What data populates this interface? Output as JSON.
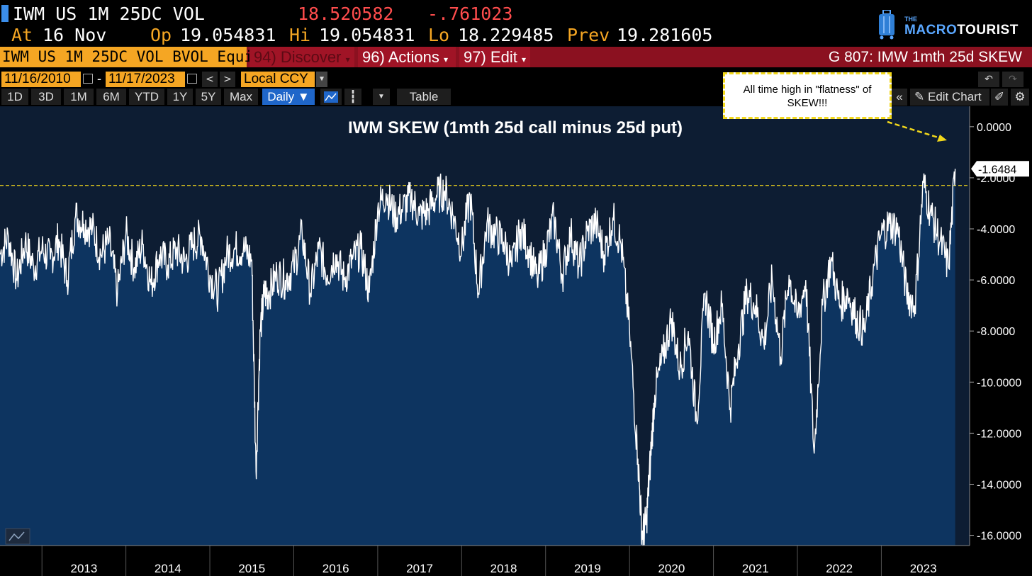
{
  "header": {
    "ticker": "IWM US 1M 25DC VOL",
    "last": "18.520582",
    "change": "-.761023",
    "at_label": "At",
    "at_value": "16 Nov",
    "op_label": "Op",
    "op_value": "19.054831",
    "hi_label": "Hi",
    "hi_value": "19.054831",
    "lo_label": "Lo",
    "lo_value": "18.229485",
    "prev_label": "Prev",
    "prev_value": "19.281605",
    "logo_the": "THE",
    "logo_macro": "MACRO",
    "logo_tourist": "TOURIST"
  },
  "menubar": {
    "security": "IWM US 1M 25DC VOL BVOL Equi",
    "discover": "94) Discover",
    "actions": "96) Actions",
    "edit": "97) Edit",
    "graph_title": "G 807: IMW 1mth 25d SKEW"
  },
  "date_range": {
    "start": "11/16/2010",
    "separator": "-",
    "end": "11/17/2023",
    "currency": "Local CCY"
  },
  "toolbar": {
    "periods": [
      "1D",
      "3D",
      "1M",
      "6M",
      "YTD",
      "1Y",
      "5Y",
      "Max"
    ],
    "frequency": "Daily ▼",
    "table": "Table",
    "edit_chart": "Edit Chart"
  },
  "annotation": {
    "text": "All time high in \"flatness\" of SKEW!!!"
  },
  "chart_data": {
    "type": "area",
    "title": "IWM SKEW (1mth 25d call minus 25d put)",
    "x_ticks": [
      "2013",
      "2014",
      "2015",
      "2016",
      "2017",
      "2018",
      "2019",
      "2020",
      "2021",
      "2022",
      "2023"
    ],
    "y_ticks": [
      "0.0000",
      "-2.0000",
      "-4.0000",
      "-6.0000",
      "-8.0000",
      "-10.0000",
      "-12.0000",
      "-14.0000",
      "-16.0000"
    ],
    "ylim": [
      -16.4,
      0.8
    ],
    "last_value_label": "-1.6484",
    "reference_line": -2.3,
    "series": [
      {
        "x": [
          2012.5,
          2012.6,
          2012.7,
          2012.8,
          2012.9,
          2013.0,
          2013.1,
          2013.2,
          2013.3,
          2013.4,
          2013.5,
          2013.6,
          2013.7,
          2013.8,
          2013.9,
          2014.0,
          2014.1,
          2014.2,
          2014.3,
          2014.4,
          2014.5,
          2014.6,
          2014.7,
          2014.8,
          2014.9,
          2015.0,
          2015.1,
          2015.2,
          2015.3,
          2015.4,
          2015.5,
          2015.55,
          2015.6,
          2015.65,
          2015.7,
          2015.8,
          2015.9,
          2016.0,
          2016.1,
          2016.2,
          2016.3,
          2016.4,
          2016.5,
          2016.6,
          2016.7,
          2016.8,
          2016.9,
          2017.0,
          2017.1,
          2017.2,
          2017.3,
          2017.4,
          2017.5,
          2017.6,
          2017.7,
          2017.8,
          2017.9,
          2018.0,
          2018.1,
          2018.2,
          2018.3,
          2018.4,
          2018.5,
          2018.6,
          2018.7,
          2018.8,
          2018.9,
          2019.0,
          2019.1,
          2019.2,
          2019.3,
          2019.4,
          2019.5,
          2019.6,
          2019.7,
          2019.8,
          2019.9,
          2020.0,
          2020.1,
          2020.15,
          2020.2,
          2020.25,
          2020.3,
          2020.4,
          2020.5,
          2020.6,
          2020.7,
          2020.8,
          2020.9,
          2021.0,
          2021.1,
          2021.2,
          2021.3,
          2021.4,
          2021.5,
          2021.6,
          2021.7,
          2021.8,
          2021.9,
          2022.0,
          2022.1,
          2022.2,
          2022.3,
          2022.4,
          2022.5,
          2022.6,
          2022.7,
          2022.8,
          2022.9,
          2023.0,
          2023.1,
          2023.2,
          2023.3,
          2023.4,
          2023.5,
          2023.6,
          2023.7,
          2023.8,
          2023.88
        ],
        "y": [
          -5.0,
          -4.3,
          -6.0,
          -4.5,
          -5.5,
          -4.8,
          -5.2,
          -4.4,
          -6.0,
          -3.5,
          -3.8,
          -4.0,
          -5.0,
          -4.5,
          -6.5,
          -4.2,
          -5.5,
          -4.6,
          -6.2,
          -5.0,
          -5.4,
          -4.8,
          -5.3,
          -4.6,
          -4.3,
          -5.8,
          -6.5,
          -5.0,
          -4.8,
          -4.8,
          -5.2,
          -13.5,
          -8.0,
          -6.5,
          -6.5,
          -5.8,
          -6.0,
          -5.5,
          -4.2,
          -6.5,
          -4.8,
          -5.8,
          -5.0,
          -6.0,
          -5.2,
          -4.8,
          -6.5,
          -3.2,
          -2.6,
          -3.5,
          -3.2,
          -2.8,
          -3.5,
          -3.3,
          -2.7,
          -2.5,
          -3.5,
          -4.8,
          -2.7,
          -6.5,
          -3.8,
          -4.2,
          -4.5,
          -5.5,
          -4.0,
          -4.8,
          -6.0,
          -4.8,
          -3.6,
          -5.8,
          -4.2,
          -5.5,
          -4.1,
          -3.8,
          -5.0,
          -3.6,
          -4.6,
          -8.0,
          -13.0,
          -16.0,
          -15.5,
          -13.0,
          -10.5,
          -9.0,
          -7.5,
          -9.5,
          -8.0,
          -11.5,
          -6.5,
          -8.5,
          -7.0,
          -11.0,
          -8.5,
          -6.5,
          -7.0,
          -8.5,
          -6.0,
          -9.0,
          -5.8,
          -7.5,
          -6.0,
          -12.8,
          -7.0,
          -5.2,
          -7.0,
          -6.5,
          -7.5,
          -8.0,
          -5.8,
          -4.2,
          -3.8,
          -4.0,
          -6.5,
          -7.0,
          -2.2,
          -3.5,
          -4.5,
          -5.5,
          -1.6484
        ]
      }
    ]
  }
}
